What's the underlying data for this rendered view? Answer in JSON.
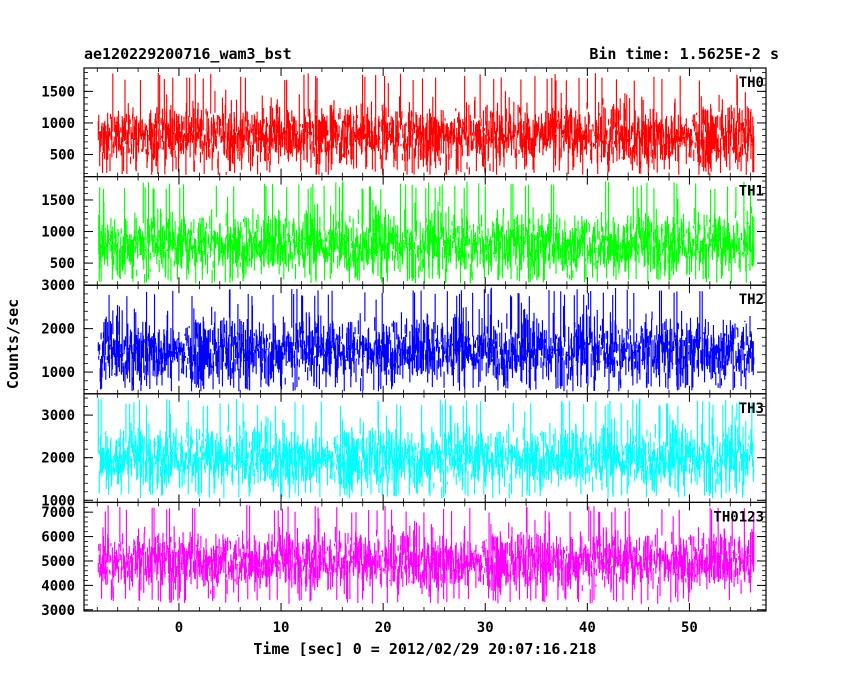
{
  "chart_data": {
    "type": "line",
    "title_left": "ae120229200716_wam3_bst",
    "title_right": "Bin time: 1.5625E-2 s",
    "xlabel": "Time [sec] 0 = 2012/02/29 20:07:16.218",
    "ylabel": "Counts/sec",
    "xlim": [
      -9.3,
      57.5
    ],
    "x_data_range": [
      -7.9,
      56.3
    ],
    "x_ticks": [
      0,
      10,
      20,
      30,
      40,
      50
    ],
    "x_tick_labels": [
      "0",
      "10",
      "20",
      "30",
      "40",
      "50"
    ],
    "grid": false,
    "panels": [
      {
        "name": "TH0",
        "color": "#ff0000",
        "ylim": [
          150,
          1870
        ],
        "y_ticks": [
          500,
          1000,
          1500
        ],
        "y_tick_labels": [
          "500",
          "1000",
          "1500"
        ],
        "typical_range": [
          350,
          1250
        ],
        "min_approx": 180,
        "max_approx": 1800,
        "mean_approx": 800
      },
      {
        "name": "TH1",
        "color": "#00ff00",
        "ylim": [
          150,
          1870
        ],
        "y_ticks": [
          500,
          1000,
          1500
        ],
        "y_tick_labels": [
          "500",
          "1000",
          "1500"
        ],
        "typical_range": [
          350,
          1250
        ],
        "min_approx": 180,
        "max_approx": 1800,
        "mean_approx": 800
      },
      {
        "name": "TH2",
        "color": "#0000ff",
        "ylim": [
          500,
          3000
        ],
        "y_ticks": [
          1000,
          2000,
          3000
        ],
        "y_tick_labels": [
          "1000",
          "2000",
          "3000"
        ],
        "typical_range": [
          800,
          2200
        ],
        "min_approx": 560,
        "max_approx": 2950,
        "mean_approx": 1500
      },
      {
        "name": "TH3",
        "color": "#00ffff",
        "ylim": [
          950,
          3500
        ],
        "y_ticks": [
          1000,
          2000,
          3000
        ],
        "y_tick_labels": [
          "1000",
          "2000",
          "3000"
        ],
        "typical_range": [
          1400,
          2700
        ],
        "min_approx": 1050,
        "max_approx": 3400,
        "mean_approx": 2000
      },
      {
        "name": "TH0123",
        "color": "#ff00ff",
        "ylim": [
          2950,
          7400
        ],
        "y_ticks": [
          3000,
          4000,
          5000,
          6000,
          7000
        ],
        "y_tick_labels": [
          "3000",
          "4000",
          "5000",
          "6000",
          "7000"
        ],
        "typical_range": [
          3800,
          6000
        ],
        "min_approx": 3250,
        "max_approx": 7300,
        "mean_approx": 5000
      }
    ]
  }
}
